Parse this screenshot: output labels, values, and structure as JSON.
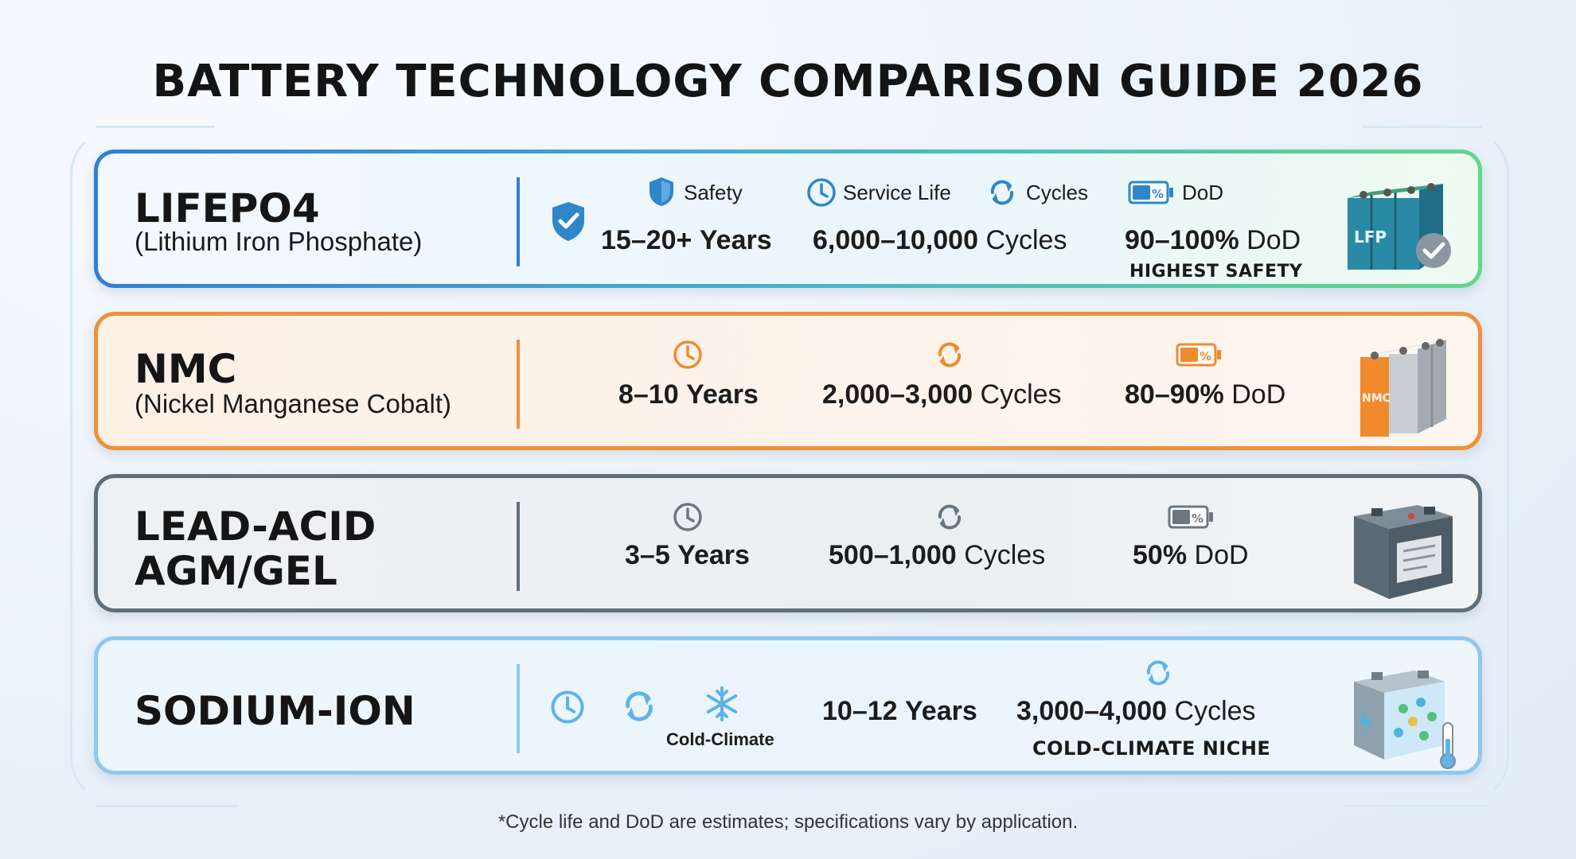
{
  "title": "BATTERY TECHNOLOGY COMPARISON GUIDE 2026",
  "rows": {
    "lifepo4": {
      "name": "LIFEPO4",
      "subtitle": "(Lithium Iron Phosphate)",
      "labels": {
        "safety": "Safety",
        "service_life": "Service Life",
        "cycles": "Cycles",
        "dod": "DoD"
      },
      "life_value": "15–20+",
      "life_unit": "Years",
      "cycles_value": "6,000–10,000",
      "cycles_unit": "Cycles",
      "dod_value": "90–100%",
      "dod_unit": "DoD",
      "badge": "HIGHEST SAFETY",
      "battery_label": "LFP"
    },
    "nmc": {
      "name": "NMC",
      "subtitle": "(Nickel Manganese Cobalt)",
      "life_value": "8–10",
      "life_unit": "Years",
      "cycles_value": "2,000–3,000",
      "cycles_unit": "Cycles",
      "dod_value": "80–90%",
      "dod_unit": "DoD",
      "battery_label": "NMC"
    },
    "lead_acid": {
      "name_line1": "LEAD-ACID",
      "name_line2": "AGM/GEL",
      "life_value": "3–5",
      "life_unit": "Years",
      "cycles_value": "500–1,000",
      "cycles_unit": "Cycles",
      "dod_value": "50%",
      "dod_unit": "DoD"
    },
    "sodium_ion": {
      "name": "SODIUM-ION",
      "cold_label": "Cold-Climate",
      "life_value": "10–12",
      "life_unit": "Years",
      "cycles_value": "3,000–4,000",
      "cycles_unit": "Cycles",
      "badge": "COLD-CLIMATE NICHE"
    }
  },
  "footnote": "*Cycle life and DoD are estimates; specifications vary by application.",
  "colors": {
    "lifepo4_border_start": "#2f7fd6",
    "lifepo4_border_end": "#5fd88a",
    "nmc_border": "#f0913a",
    "lead_border": "#5f6f7a",
    "sodium_border": "#8ec8ee",
    "icon_blue": "#2f86c9",
    "icon_orange": "#f08a2c",
    "icon_gray": "#6b7780",
    "icon_lightblue": "#5fb3e6"
  }
}
